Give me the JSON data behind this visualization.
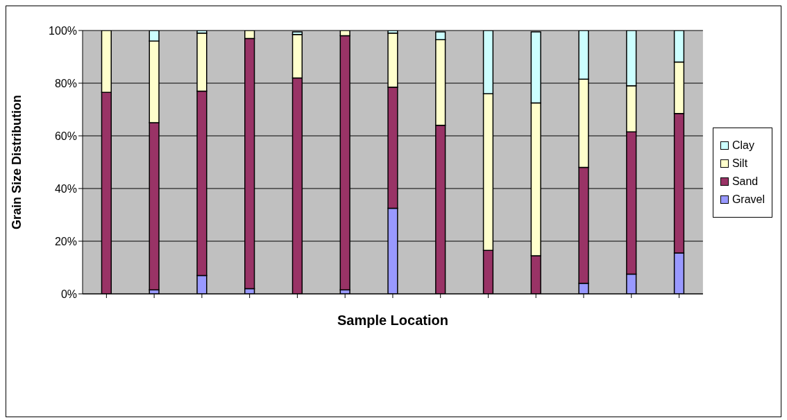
{
  "chart_data": {
    "type": "bar",
    "stacked": true,
    "xlabel": "Sample Location",
    "ylabel": "Grain Size Distribution",
    "categories": [
      null,
      null,
      null,
      null,
      null,
      null,
      null,
      null,
      null,
      null,
      null,
      null,
      null
    ],
    "series": [
      {
        "name": "Gravel",
        "color": "#9999ff",
        "values": [
          0,
          1.5,
          7,
          2,
          null,
          1.5,
          32.5,
          null,
          0,
          null,
          4,
          7.5,
          15.5
        ]
      },
      {
        "name": "Sand",
        "color": "#993366",
        "values": [
          76.5,
          63.5,
          70,
          95,
          82,
          96.5,
          46,
          64,
          16.5,
          14.5,
          44,
          54,
          53
        ]
      },
      {
        "name": "Silt",
        "color": "#ffffcc",
        "values": [
          23.5,
          31,
          22,
          3,
          16.5,
          2,
          20.5,
          32.5,
          59.5,
          58,
          33.5,
          17.5,
          19.5
        ]
      },
      {
        "name": "Clay",
        "color": "#ccffff",
        "values": [
          0,
          4,
          1,
          0,
          1,
          0,
          1,
          3,
          24,
          27,
          18.5,
          21,
          12
        ]
      }
    ],
    "ylim": [
      0,
      100
    ],
    "yticks": [
      {
        "value": 0,
        "label": "0%"
      },
      {
        "value": 20,
        "label": "20%"
      },
      {
        "value": 40,
        "label": "40%"
      },
      {
        "value": 60,
        "label": "60%"
      },
      {
        "value": 80,
        "label": "80%"
      },
      {
        "value": 100,
        "label": "100%"
      }
    ],
    "grid": "y",
    "legend": "right"
  }
}
